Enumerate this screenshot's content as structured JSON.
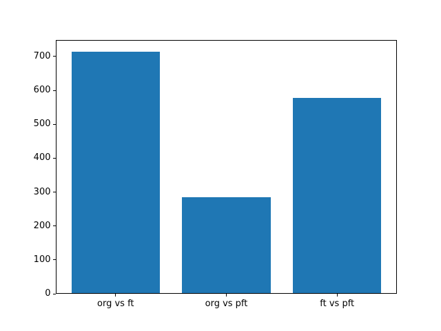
{
  "chart_data": {
    "type": "bar",
    "categories": [
      "org vs ft",
      "org vs pft",
      "ft vs pft"
    ],
    "values": [
      713,
      283,
      576
    ],
    "title": "",
    "xlabel": "",
    "ylabel": "",
    "ylim": [
      0,
      748.65
    ],
    "xlim": [
      -0.54,
      2.54
    ],
    "yticks": [
      0,
      100,
      200,
      300,
      400,
      500,
      600,
      700
    ],
    "bar_color": "#1f77b4",
    "bar_width_fraction": 0.8,
    "grid": false,
    "legend": null,
    "background_color": "#ffffff",
    "spine_color": "#000000"
  }
}
